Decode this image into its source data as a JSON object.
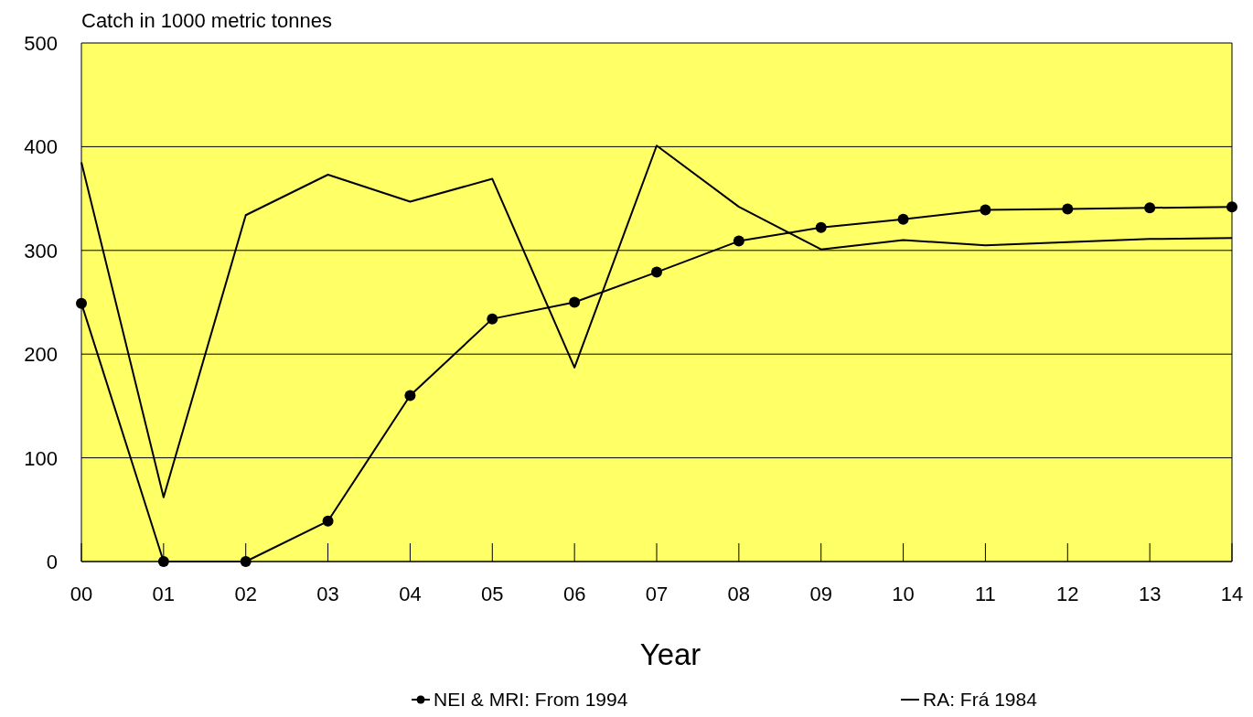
{
  "chart_data": {
    "type": "line",
    "ylabel": "Catch in 1000 metric tonnes",
    "xlabel": "Year",
    "categories": [
      "00",
      "01",
      "02",
      "03",
      "04",
      "05",
      "06",
      "07",
      "08",
      "09",
      "10",
      "11",
      "12",
      "13",
      "14"
    ],
    "series": [
      {
        "name": "NEI & MRI: From 1994",
        "color": "#000000",
        "marker": "circle",
        "values": [
          249,
          0,
          0,
          39,
          160,
          234,
          250,
          279,
          309,
          322,
          330,
          339,
          340,
          341,
          342
        ]
      },
      {
        "name": "RA: Frá 1984",
        "color": "#000000",
        "marker": "none",
        "values": [
          385,
          62,
          334,
          373,
          347,
          369,
          187,
          401,
          342,
          301,
          310,
          305,
          308,
          311,
          312
        ]
      }
    ],
    "ylim": [
      0,
      500
    ],
    "yticks": [
      0,
      100,
      200,
      300,
      400,
      500
    ],
    "grid": "y",
    "legend": "bottom",
    "line_style": "solid"
  }
}
